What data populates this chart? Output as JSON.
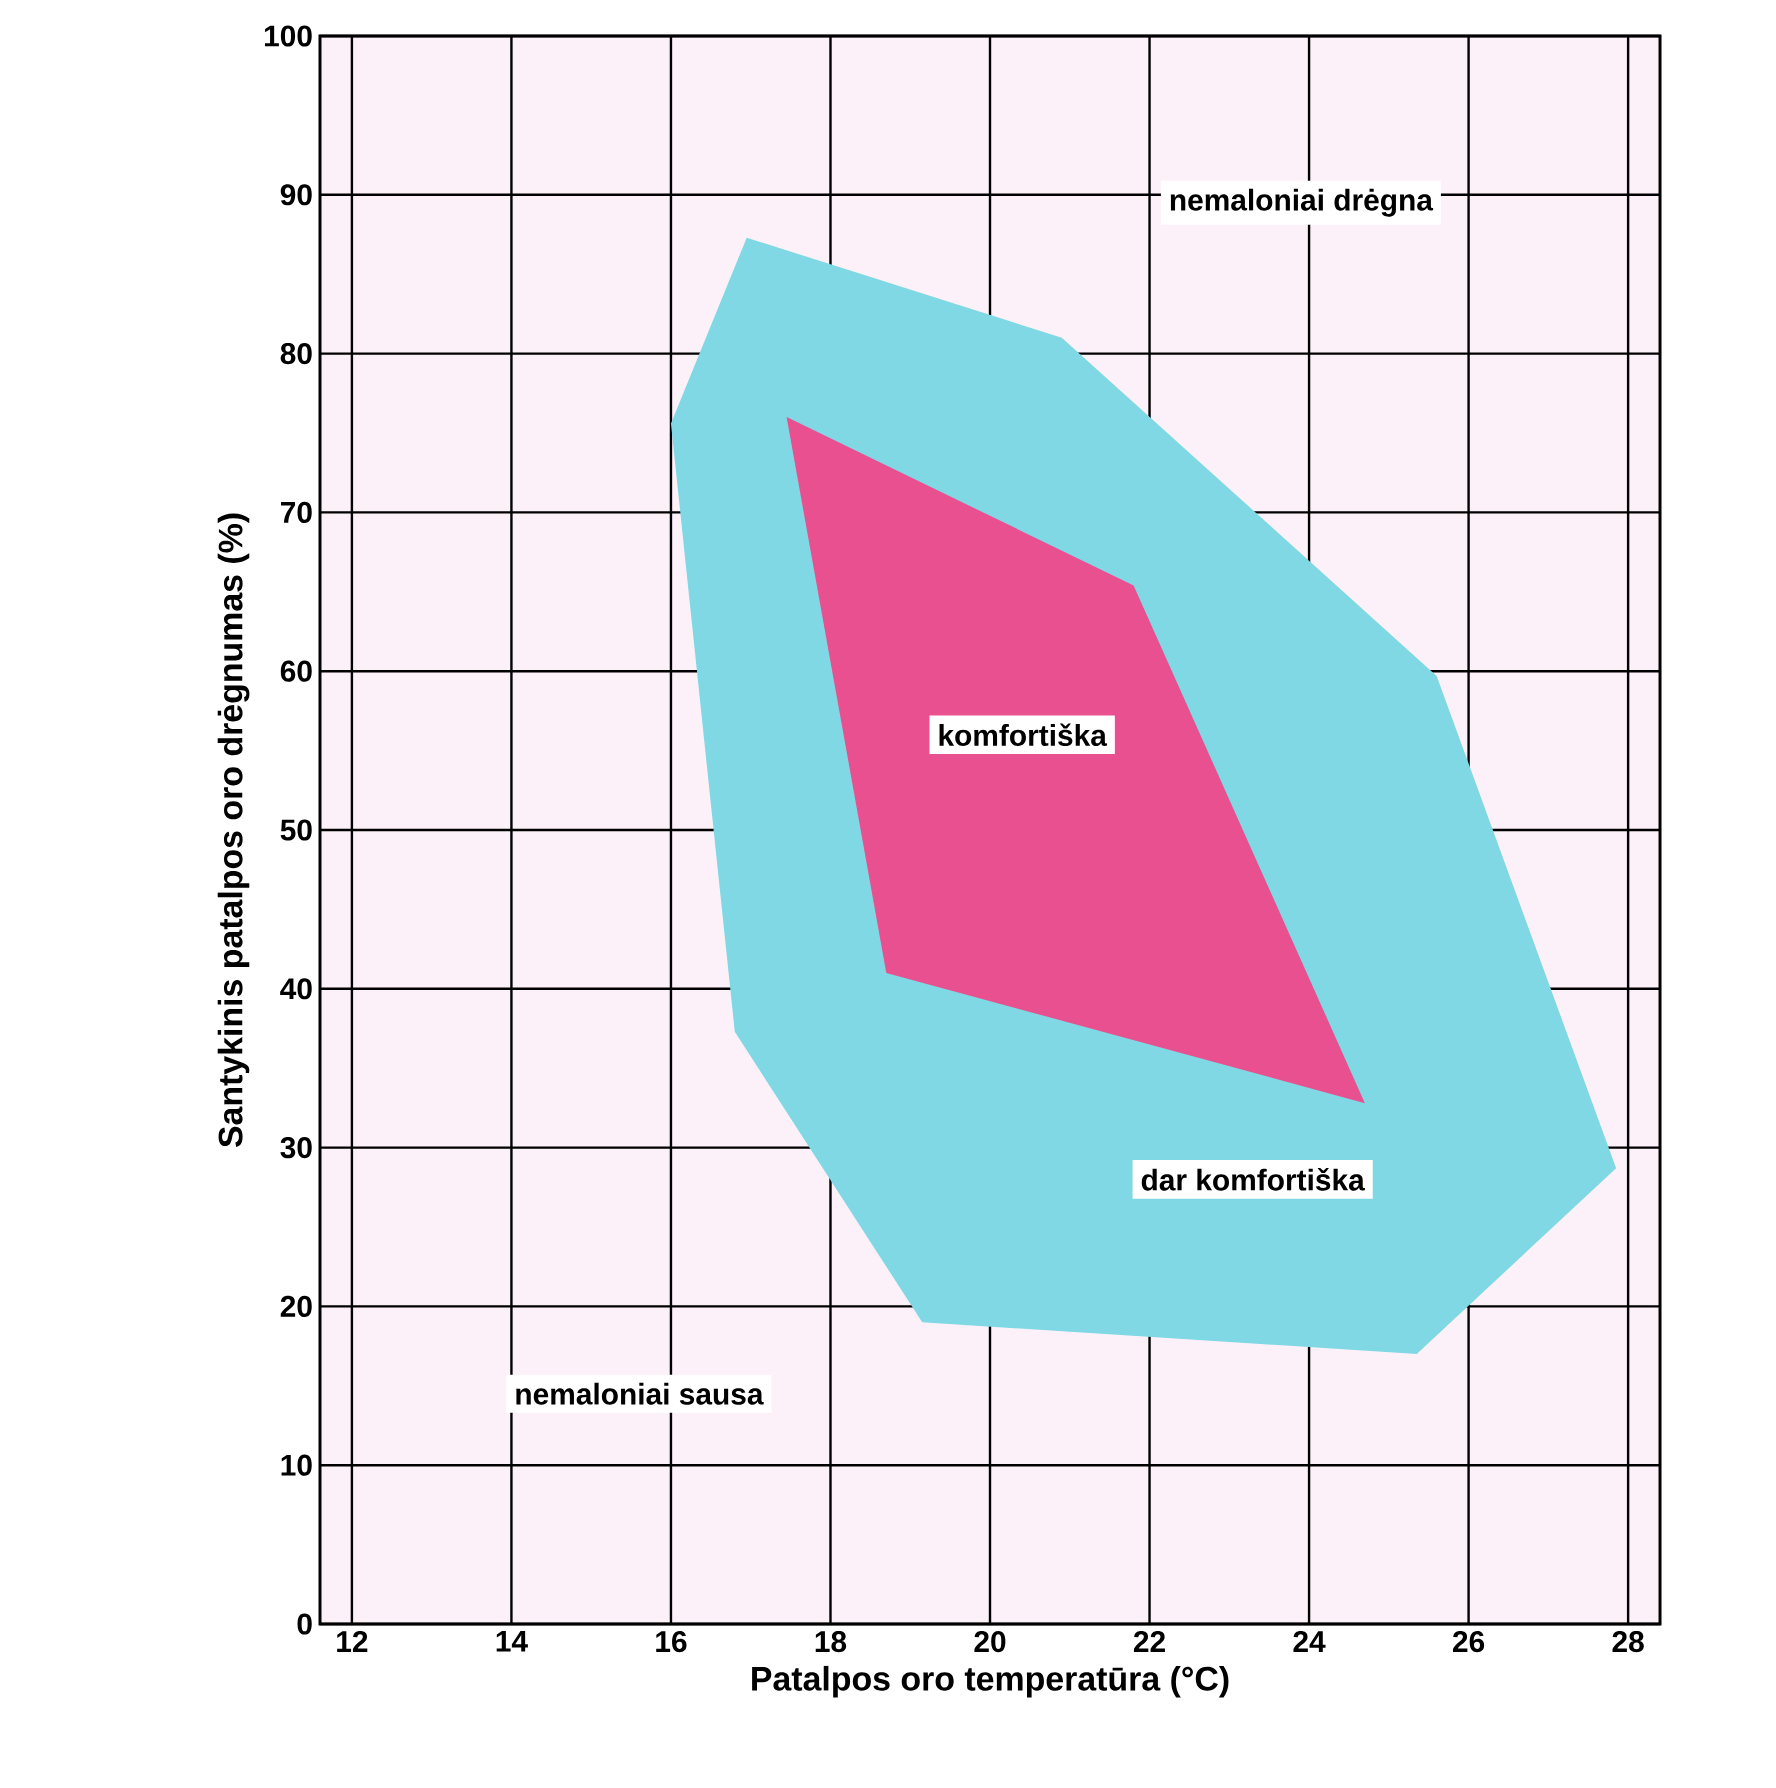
{
  "chart_data": {
    "type": "area",
    "xlabel": "Patalpos oro temperatūra (°C)",
    "ylabel": "Santykinis patalpos oro drėgnumas  (%)",
    "xlim": [
      11.6,
      28.4
    ],
    "ylim": [
      0,
      100
    ],
    "xticks": [
      12,
      14,
      16,
      18,
      20,
      22,
      24,
      26,
      28
    ],
    "yticks": [
      0,
      10,
      20,
      30,
      40,
      50,
      60,
      70,
      80,
      90,
      100
    ],
    "grid": true,
    "series": [
      {
        "color": "#7fd8e4",
        "x": [
          16.95,
          20.9,
          25.6,
          27.85,
          25.35,
          19.15,
          16.8,
          16.0
        ],
        "values": [
          87.3,
          81,
          59.7,
          28.7,
          17,
          19,
          37.3,
          75.6
        ]
      },
      {
        "color": "#e8508f",
        "x": [
          17.45,
          21.8,
          24.7,
          18.7
        ],
        "values": [
          76,
          65.4,
          32.8,
          41
        ]
      }
    ],
    "annotations": [
      "nemaloniai drėgna",
      "komfortiška",
      "dar komfortiška",
      "nemaloniai sausa"
    ]
  }
}
